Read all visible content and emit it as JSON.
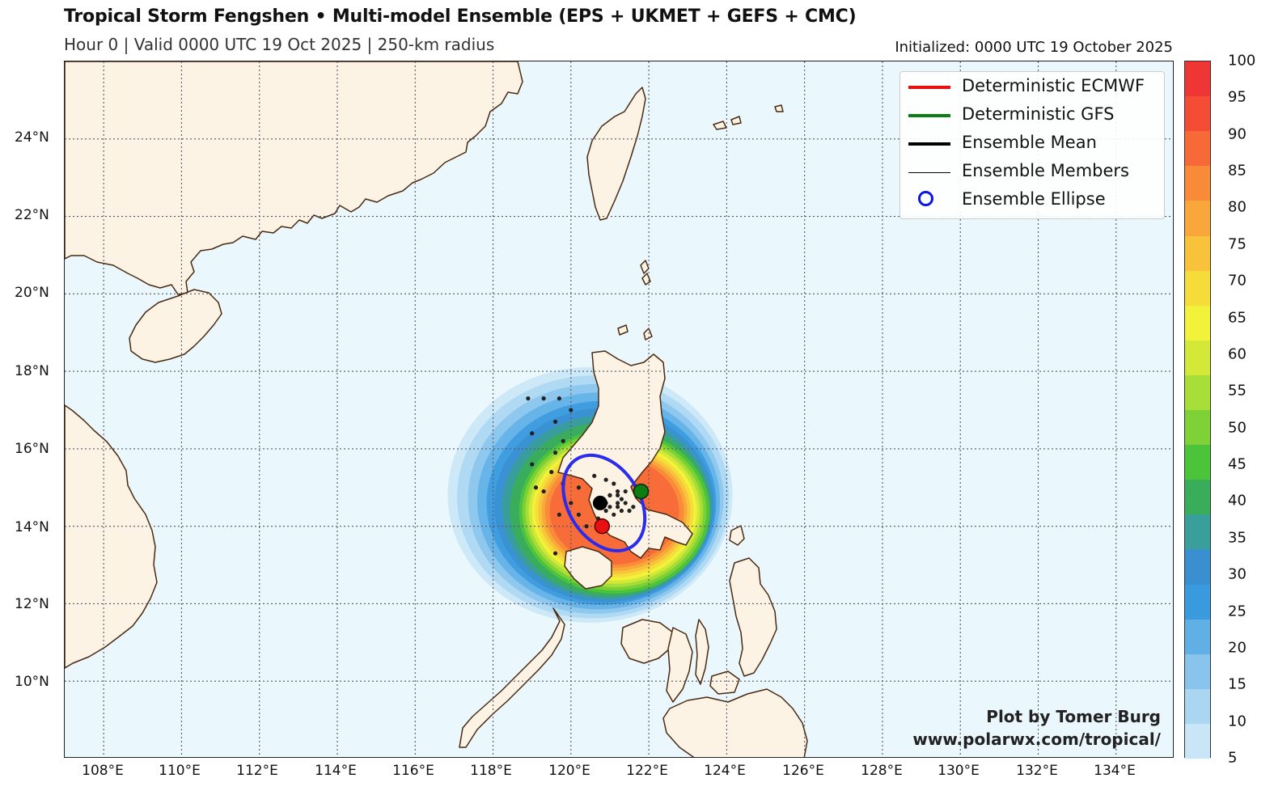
{
  "header": {
    "title": "Tropical Storm Fengshen • Multi-model Ensemble (EPS + UKMET + GEFS + CMC)",
    "subtitle": "Hour 0 | Valid 0000 UTC 19 Oct 2025 | 250-km radius",
    "initialized": "Initialized: 0000 UTC 19 October 2025"
  },
  "map": {
    "lon_range": [
      107,
      135.5
    ],
    "lat_range": [
      8,
      26
    ],
    "lat_ticks": [
      "24°N",
      "22°N",
      "20°N",
      "18°N",
      "16°N",
      "14°N",
      "12°N",
      "10°N"
    ],
    "lon_ticks": [
      "108°E",
      "110°E",
      "112°E",
      "114°E",
      "116°E",
      "118°E",
      "120°E",
      "122°E",
      "124°E",
      "126°E",
      "128°E",
      "130°E",
      "132°E",
      "134°E"
    ],
    "ocean_color": "#eaf7fc",
    "land_color": "#fcf3e4",
    "coast_color": "#4a2a12",
    "gridlines": true,
    "storm_center": {
      "lon": 120.7,
      "lat": 14.6
    },
    "ensemble_mean": {
      "lon": 120.75,
      "lat": 14.6
    },
    "ecmwf": {
      "lon": 120.8,
      "lat": 14.0
    },
    "gfs": {
      "lon": 121.8,
      "lat": 14.9
    }
  },
  "legend": {
    "items": [
      {
        "label": "Deterministic ECMWF",
        "color": "#e81010",
        "style": "line-thick"
      },
      {
        "label": "Deterministic GFS",
        "color": "#0c7d12",
        "style": "line-thick"
      },
      {
        "label": "Ensemble Mean",
        "color": "#000000",
        "style": "line-thick"
      },
      {
        "label": "Ensemble Members",
        "color": "#000000",
        "style": "line-thin"
      },
      {
        "label": "Ensemble Ellipse",
        "color": "#0b14e0",
        "style": "circle"
      }
    ]
  },
  "colorbar": {
    "labels": [
      "100",
      "95",
      "90",
      "85",
      "80",
      "75",
      "70",
      "65",
      "60",
      "55",
      "50",
      "45",
      "40",
      "35",
      "30",
      "25",
      "20",
      "15",
      "10",
      "5"
    ],
    "colors": [
      "#f03535",
      "#f54d35",
      "#f76a38",
      "#f98a38",
      "#f9a63a",
      "#f8c23b",
      "#f5dc38",
      "#f3f23a",
      "#d4e838",
      "#a8de38",
      "#7ed136",
      "#4cc43a",
      "#3aad5a",
      "#3a9e9a",
      "#3a8fd0",
      "#3a9ade",
      "#60b0e6",
      "#88c4ec",
      "#aad6f2",
      "#c8e6f7"
    ]
  },
  "credit": {
    "line1": "Plot by Tomer Burg",
    "line2": "www.polarwx.com/tropical/"
  }
}
